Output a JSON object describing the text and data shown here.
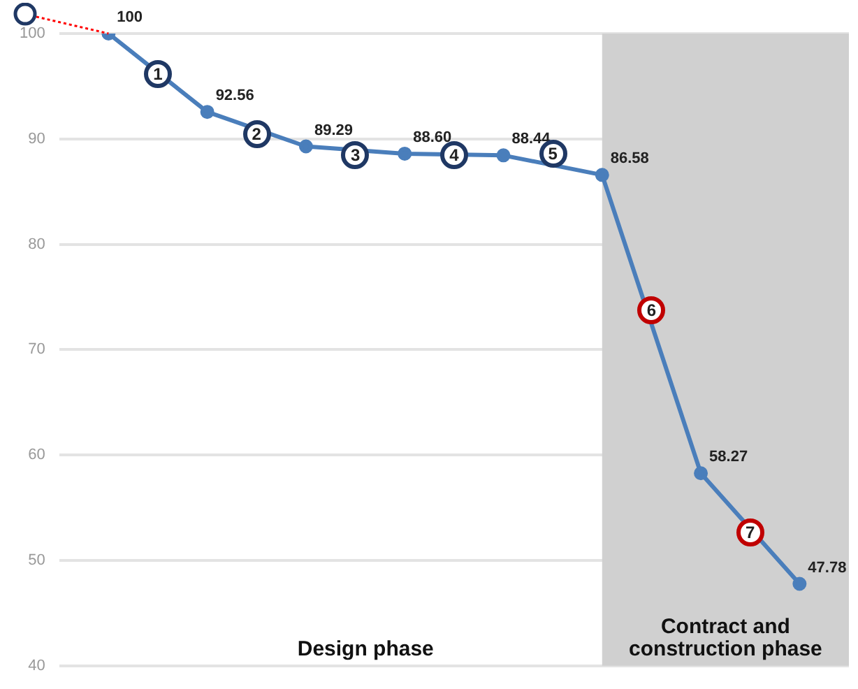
{
  "chart_data": {
    "type": "line",
    "categories": [
      null,
      null,
      null,
      null,
      null,
      null,
      null,
      null
    ],
    "ylim": [
      40,
      100
    ],
    "yticks": [
      40,
      50,
      60,
      70,
      80,
      90,
      100
    ],
    "tick_labels": "y",
    "grid": "y",
    "marker": "circle",
    "series": [
      {
        "color": "#4a7ebb",
        "values": [
          100,
          92.56,
          89.29,
          88.6,
          88.44,
          86.58,
          58.27,
          47.78
        ],
        "value_labels": [
          "100",
          "92.56",
          "89.29",
          "88.60",
          "88.44",
          "86.58",
          "58.27",
          "47.78"
        ]
      }
    ],
    "annotations": [
      {
        "text": "1",
        "y": 96.2
      },
      {
        "text": "2",
        "y": 90.5
      },
      {
        "text": "3",
        "y": 88.5
      },
      {
        "text": "4",
        "y": 88.5
      },
      {
        "text": "5",
        "y": 88.6
      },
      {
        "text": "6",
        "y": 73.8
      },
      {
        "text": "7",
        "y": 52.6
      },
      "Design phase",
      "Contract and construction phase"
    ]
  }
}
